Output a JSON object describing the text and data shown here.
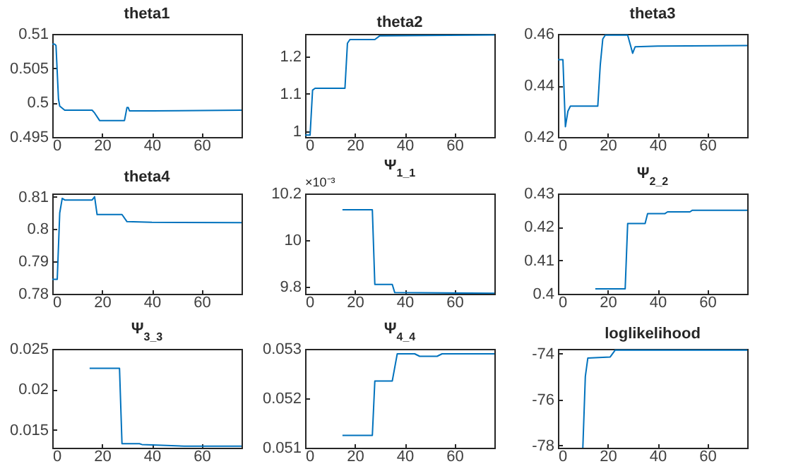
{
  "chart_data": [
    {
      "type": "line",
      "title": "theta1",
      "color": "#0072bd",
      "xlim": [
        0,
        76
      ],
      "xticks": [
        0,
        20,
        40,
        60
      ],
      "ylim": [
        0.495,
        0.51
      ],
      "yticks": [
        0.495,
        0.5,
        0.505,
        0.51
      ],
      "x": [
        0,
        1,
        1.5,
        2.5,
        3,
        5,
        16,
        17,
        19,
        29,
        30,
        30.5,
        31,
        40,
        76
      ],
      "values": [
        0.5085,
        0.5085,
        0.5083,
        0.5005,
        0.4995,
        0.4989,
        0.4989,
        0.4985,
        0.4974,
        0.4974,
        0.4993,
        0.4993,
        0.4988,
        0.4988,
        0.4989
      ]
    },
    {
      "type": "line",
      "title": "theta2",
      "color": "#0072bd",
      "xlim": [
        0,
        76
      ],
      "xticks": [
        0,
        20,
        40,
        60
      ],
      "ylim": [
        0.985,
        1.26
      ],
      "yticks": [
        1,
        1.1,
        1.2
      ],
      "x": [
        0,
        2,
        3,
        4,
        16,
        17,
        18,
        28,
        30,
        76
      ],
      "values": [
        0.99,
        0.99,
        1.11,
        1.115,
        1.115,
        1.235,
        1.245,
        1.245,
        1.255,
        1.257
      ]
    },
    {
      "type": "line",
      "title": "theta3",
      "color": "#0072bd",
      "xlim": [
        0,
        76
      ],
      "xticks": [
        0,
        20,
        40,
        60
      ],
      "ylim": [
        0.42,
        0.46
      ],
      "yticks": [
        0.42,
        0.44,
        0.46
      ],
      "x": [
        0,
        2,
        3,
        4,
        5,
        16,
        17,
        18,
        19,
        28,
        29,
        30,
        31,
        40,
        76
      ],
      "values": [
        0.45,
        0.45,
        0.424,
        0.43,
        0.432,
        0.432,
        0.448,
        0.458,
        0.4595,
        0.4595,
        0.456,
        0.4525,
        0.455,
        0.4553,
        0.4555
      ]
    },
    {
      "type": "line",
      "title": "theta4",
      "color": "#0072bd",
      "xlim": [
        0,
        76
      ],
      "xticks": [
        0,
        20,
        40,
        60
      ],
      "ylim": [
        0.78,
        0.811
      ],
      "yticks": [
        0.78,
        0.79,
        0.8,
        0.81
      ],
      "x": [
        0,
        2,
        3,
        4,
        5,
        16,
        17,
        18,
        28,
        30,
        40,
        76
      ],
      "values": [
        0.7845,
        0.7845,
        0.805,
        0.8095,
        0.809,
        0.809,
        0.81,
        0.8045,
        0.8045,
        0.8023,
        0.8021,
        0.802
      ]
    },
    {
      "type": "line",
      "title": "Ψ$_{1_1}$",
      "color": "#0072bd",
      "xlim": [
        0,
        76
      ],
      "xticks": [
        0,
        20,
        40,
        60
      ],
      "ylim": [
        9.77,
        10.2
      ],
      "yticks": [
        9.8,
        10,
        10.2
      ],
      "annotations": [
        "×10⁻³"
      ],
      "x": [
        15,
        27,
        28,
        35,
        36,
        76
      ],
      "values": [
        10.13,
        10.13,
        9.81,
        9.81,
        9.775,
        9.772
      ]
    },
    {
      "type": "line",
      "title": "Ψ$_{2_2}$",
      "color": "#0072bd",
      "xlim": [
        0,
        76
      ],
      "xticks": [
        0,
        20,
        40,
        60
      ],
      "ylim": [
        0.4,
        0.43
      ],
      "yticks": [
        0.4,
        0.41,
        0.42,
        0.43
      ],
      "x": [
        15,
        27,
        28,
        35,
        36,
        43,
        44,
        53,
        54,
        76
      ],
      "values": [
        0.4015,
        0.4015,
        0.421,
        0.421,
        0.424,
        0.424,
        0.4245,
        0.4245,
        0.425,
        0.425
      ]
    },
    {
      "type": "line",
      "title": "Ψ$_{3_3}$",
      "color": "#0072bd",
      "xlim": [
        0,
        76
      ],
      "xticks": [
        0,
        20,
        40,
        60
      ],
      "ylim": [
        0.0128,
        0.025
      ],
      "yticks": [
        0.015,
        0.02,
        0.025
      ],
      "x": [
        15,
        27,
        28,
        35,
        36,
        44,
        53,
        76
      ],
      "values": [
        0.0226,
        0.0226,
        0.0133,
        0.0133,
        0.0132,
        0.0131,
        0.013,
        0.013
      ]
    },
    {
      "type": "line",
      "title": "Ψ$_{4_4}$",
      "color": "#0072bd",
      "xlim": [
        0,
        76
      ],
      "xticks": [
        0,
        20,
        40,
        60
      ],
      "ylim": [
        0.051,
        0.053
      ],
      "yticks": [
        0.051,
        0.052,
        0.053
      ],
      "x": [
        15,
        27,
        28,
        35,
        37,
        44,
        46,
        53,
        55,
        76
      ],
      "values": [
        0.05125,
        0.05125,
        0.05235,
        0.05235,
        0.0529,
        0.0529,
        0.05285,
        0.05285,
        0.0529,
        0.0529
      ]
    },
    {
      "type": "line",
      "title": "loglikelihood",
      "color": "#0072bd",
      "xlim": [
        0,
        76
      ],
      "xticks": [
        0,
        20,
        40,
        60
      ],
      "ylim": [
        -78.1,
        -73.8
      ],
      "yticks": [
        -78,
        -76,
        -74
      ],
      "x": [
        10,
        11,
        12,
        21,
        23,
        76
      ],
      "values": [
        -78.1,
        -75,
        -74.2,
        -74.15,
        -73.85,
        -73.85
      ]
    }
  ]
}
